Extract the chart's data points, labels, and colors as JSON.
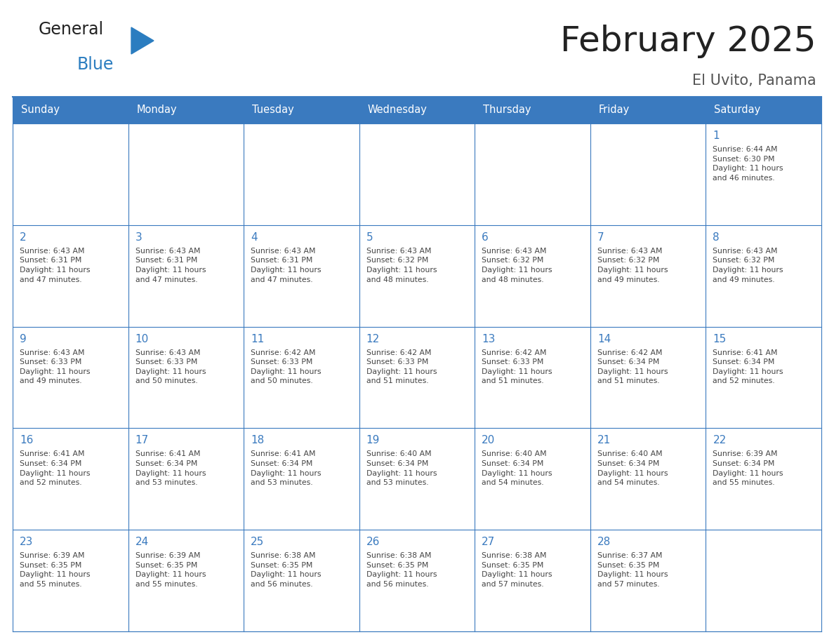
{
  "title": "February 2025",
  "subtitle": "El Uvito, Panama",
  "header_color": "#3a7abf",
  "header_text_color": "#ffffff",
  "cell_bg_color": "#ffffff",
  "border_color": "#3a7abf",
  "day_number_color": "#3a7abf",
  "text_color": "#444444",
  "days_of_week": [
    "Sunday",
    "Monday",
    "Tuesday",
    "Wednesday",
    "Thursday",
    "Friday",
    "Saturday"
  ],
  "weeks": [
    [
      {
        "day": "",
        "info": ""
      },
      {
        "day": "",
        "info": ""
      },
      {
        "day": "",
        "info": ""
      },
      {
        "day": "",
        "info": ""
      },
      {
        "day": "",
        "info": ""
      },
      {
        "day": "",
        "info": ""
      },
      {
        "day": "1",
        "info": "Sunrise: 6:44 AM\nSunset: 6:30 PM\nDaylight: 11 hours\nand 46 minutes."
      }
    ],
    [
      {
        "day": "2",
        "info": "Sunrise: 6:43 AM\nSunset: 6:31 PM\nDaylight: 11 hours\nand 47 minutes."
      },
      {
        "day": "3",
        "info": "Sunrise: 6:43 AM\nSunset: 6:31 PM\nDaylight: 11 hours\nand 47 minutes."
      },
      {
        "day": "4",
        "info": "Sunrise: 6:43 AM\nSunset: 6:31 PM\nDaylight: 11 hours\nand 47 minutes."
      },
      {
        "day": "5",
        "info": "Sunrise: 6:43 AM\nSunset: 6:32 PM\nDaylight: 11 hours\nand 48 minutes."
      },
      {
        "day": "6",
        "info": "Sunrise: 6:43 AM\nSunset: 6:32 PM\nDaylight: 11 hours\nand 48 minutes."
      },
      {
        "day": "7",
        "info": "Sunrise: 6:43 AM\nSunset: 6:32 PM\nDaylight: 11 hours\nand 49 minutes."
      },
      {
        "day": "8",
        "info": "Sunrise: 6:43 AM\nSunset: 6:32 PM\nDaylight: 11 hours\nand 49 minutes."
      }
    ],
    [
      {
        "day": "9",
        "info": "Sunrise: 6:43 AM\nSunset: 6:33 PM\nDaylight: 11 hours\nand 49 minutes."
      },
      {
        "day": "10",
        "info": "Sunrise: 6:43 AM\nSunset: 6:33 PM\nDaylight: 11 hours\nand 50 minutes."
      },
      {
        "day": "11",
        "info": "Sunrise: 6:42 AM\nSunset: 6:33 PM\nDaylight: 11 hours\nand 50 minutes."
      },
      {
        "day": "12",
        "info": "Sunrise: 6:42 AM\nSunset: 6:33 PM\nDaylight: 11 hours\nand 51 minutes."
      },
      {
        "day": "13",
        "info": "Sunrise: 6:42 AM\nSunset: 6:33 PM\nDaylight: 11 hours\nand 51 minutes."
      },
      {
        "day": "14",
        "info": "Sunrise: 6:42 AM\nSunset: 6:34 PM\nDaylight: 11 hours\nand 51 minutes."
      },
      {
        "day": "15",
        "info": "Sunrise: 6:41 AM\nSunset: 6:34 PM\nDaylight: 11 hours\nand 52 minutes."
      }
    ],
    [
      {
        "day": "16",
        "info": "Sunrise: 6:41 AM\nSunset: 6:34 PM\nDaylight: 11 hours\nand 52 minutes."
      },
      {
        "day": "17",
        "info": "Sunrise: 6:41 AM\nSunset: 6:34 PM\nDaylight: 11 hours\nand 53 minutes."
      },
      {
        "day": "18",
        "info": "Sunrise: 6:41 AM\nSunset: 6:34 PM\nDaylight: 11 hours\nand 53 minutes."
      },
      {
        "day": "19",
        "info": "Sunrise: 6:40 AM\nSunset: 6:34 PM\nDaylight: 11 hours\nand 53 minutes."
      },
      {
        "day": "20",
        "info": "Sunrise: 6:40 AM\nSunset: 6:34 PM\nDaylight: 11 hours\nand 54 minutes."
      },
      {
        "day": "21",
        "info": "Sunrise: 6:40 AM\nSunset: 6:34 PM\nDaylight: 11 hours\nand 54 minutes."
      },
      {
        "day": "22",
        "info": "Sunrise: 6:39 AM\nSunset: 6:34 PM\nDaylight: 11 hours\nand 55 minutes."
      }
    ],
    [
      {
        "day": "23",
        "info": "Sunrise: 6:39 AM\nSunset: 6:35 PM\nDaylight: 11 hours\nand 55 minutes."
      },
      {
        "day": "24",
        "info": "Sunrise: 6:39 AM\nSunset: 6:35 PM\nDaylight: 11 hours\nand 55 minutes."
      },
      {
        "day": "25",
        "info": "Sunrise: 6:38 AM\nSunset: 6:35 PM\nDaylight: 11 hours\nand 56 minutes."
      },
      {
        "day": "26",
        "info": "Sunrise: 6:38 AM\nSunset: 6:35 PM\nDaylight: 11 hours\nand 56 minutes."
      },
      {
        "day": "27",
        "info": "Sunrise: 6:38 AM\nSunset: 6:35 PM\nDaylight: 11 hours\nand 57 minutes."
      },
      {
        "day": "28",
        "info": "Sunrise: 6:37 AM\nSunset: 6:35 PM\nDaylight: 11 hours\nand 57 minutes."
      },
      {
        "day": "",
        "info": ""
      }
    ]
  ],
  "logo_text_general": "General",
  "logo_text_blue": "Blue",
  "logo_color_general": "#222222",
  "logo_color_blue": "#2b7dc0",
  "logo_triangle_color": "#2b7dc0",
  "fig_width": 11.88,
  "fig_height": 9.18,
  "dpi": 100
}
